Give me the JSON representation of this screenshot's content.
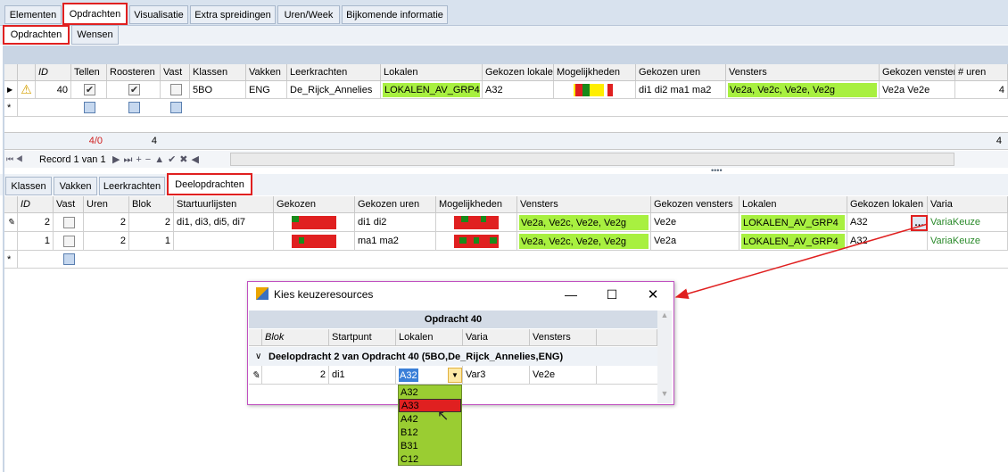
{
  "tabs": [
    "Elementen",
    "Opdrachten",
    "Visualisatie",
    "Extra spreidingen",
    "Uren/Week",
    "Bijkomende informatie"
  ],
  "subtabs": [
    "Opdrachten",
    "Wensen"
  ],
  "grid1": {
    "columns": [
      "ID",
      "Tellen",
      "Roosteren",
      "Vast",
      "Klassen",
      "Vakken",
      "Leerkrachten",
      "Lokalen",
      "Gekozen lokalen",
      "Mogelijkheden",
      "Gekozen uren",
      "Vensters",
      "Gekozen vensters",
      "# uren"
    ],
    "rows": [
      {
        "id": 40,
        "klassen": "5BO",
        "vakken": "ENG",
        "leerkrachten": "De_Rijck_Annelies",
        "lokalen": "LOKALEN_AV_GRP4",
        "gekozen_lokalen": "A32",
        "gekozen_uren": "di1 di2 ma1 ma2",
        "vensters": "Ve2a, Ve2c, Ve2e, Ve2g",
        "gekozen_vensters": "Ve2a Ve2e",
        "uren": 4
      }
    ]
  },
  "footer": {
    "count": "4/0",
    "sum": 4,
    "total": 4
  },
  "navigator": "Record 1 van 1",
  "tabs2": [
    "Klassen",
    "Vakken",
    "Leerkrachten",
    "Deelopdrachten"
  ],
  "grid2": {
    "columns": [
      "ID",
      "Vast",
      "Uren",
      "Blok",
      "Startuurlijsten",
      "Gekozen",
      "Gekozen uren",
      "Mogelijkheden",
      "Vensters",
      "Gekozen vensters",
      "Lokalen",
      "Gekozen lokalen",
      "Varia"
    ],
    "rows": [
      {
        "id": 2,
        "uren": 2,
        "blok": 2,
        "startuurlijsten": "di1, di3, di5, di7",
        "gekozen_uren": "di1 di2",
        "vensters": "Ve2a, Ve2c, Ve2e, Ve2g",
        "gekozen_vensters": "Ve2e",
        "lokalen": "LOKALEN_AV_GRP4",
        "gekozen_lokalen": "A32",
        "varia": "VariaKeuze"
      },
      {
        "id": 1,
        "uren": 2,
        "blok": 1,
        "gekozen_uren": "ma1 ma2",
        "vensters": "Ve2a, Ve2c, Ve2e, Ve2g",
        "gekozen_vensters": "Ve2a",
        "lokalen": "LOKALEN_AV_GRP4",
        "gekozen_lokalen": "A32",
        "varia": "VariaKeuze"
      }
    ]
  },
  "dialog": {
    "title": "Kies keuzeresources",
    "header": "Opdracht 40",
    "columns": [
      "Blok",
      "Startpunt",
      "Lokalen",
      "Varia",
      "Vensters"
    ],
    "group": "Deelopdracht 2 van Opdracht 40 (5BO,De_Rijck_Annelies,ENG)",
    "row": {
      "blok": 2,
      "startpunt": "di1",
      "lokalen": "A32",
      "varia": "Var3",
      "vensters": "Ve2e"
    },
    "dropdown": [
      "A32",
      "A33",
      "A42",
      "B12",
      "B31",
      "C12"
    ]
  }
}
